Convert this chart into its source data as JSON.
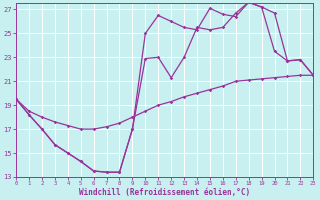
{
  "xlabel": "Windchill (Refroidissement éolien,°C)",
  "bg_color": "#c8f0f0",
  "line_color": "#993399",
  "grid_color": "#ffffff",
  "xlim": [
    0,
    23
  ],
  "ylim": [
    13,
    27.5
  ],
  "xticks": [
    0,
    1,
    2,
    3,
    4,
    5,
    6,
    7,
    8,
    9,
    10,
    11,
    12,
    13,
    14,
    15,
    16,
    17,
    18,
    19,
    20,
    21,
    22,
    23
  ],
  "yticks": [
    13,
    15,
    17,
    19,
    21,
    23,
    25,
    27
  ],
  "line1_x": [
    0,
    1,
    2,
    3,
    4,
    5,
    6,
    7,
    8,
    9,
    10,
    11,
    12,
    13,
    14,
    15,
    16,
    17,
    18,
    19,
    20,
    21,
    22,
    23
  ],
  "line1_y": [
    19.5,
    18.2,
    17.0,
    15.7,
    15.0,
    14.3,
    13.5,
    13.4,
    13.4,
    17.0,
    25.0,
    26.5,
    26.0,
    25.5,
    25.3,
    27.1,
    26.6,
    26.4,
    27.6,
    27.2,
    23.5,
    22.7,
    22.8,
    21.5
  ],
  "line2_x": [
    0,
    1,
    2,
    3,
    4,
    5,
    6,
    7,
    8,
    9,
    10,
    11,
    12,
    13,
    14,
    15,
    16,
    17,
    18,
    19,
    20,
    21,
    22,
    23
  ],
  "line2_y": [
    19.5,
    18.2,
    17.0,
    15.7,
    15.0,
    14.3,
    13.5,
    13.4,
    13.4,
    17.0,
    22.9,
    23.0,
    21.3,
    23.0,
    25.5,
    25.3,
    25.5,
    26.7,
    27.6,
    27.2,
    26.7,
    22.7,
    22.8,
    21.5
  ],
  "line3_x": [
    0,
    1,
    2,
    3,
    4,
    5,
    6,
    7,
    8,
    9,
    10,
    11,
    12,
    13,
    14,
    15,
    16,
    17,
    18,
    19,
    20,
    21,
    22,
    23
  ],
  "line3_y": [
    19.5,
    18.5,
    18.0,
    17.6,
    17.3,
    17.0,
    17.0,
    17.2,
    17.5,
    18.0,
    18.5,
    19.0,
    19.3,
    19.7,
    20.0,
    20.3,
    20.6,
    21.0,
    21.1,
    21.2,
    21.3,
    21.4,
    21.5,
    21.5
  ]
}
